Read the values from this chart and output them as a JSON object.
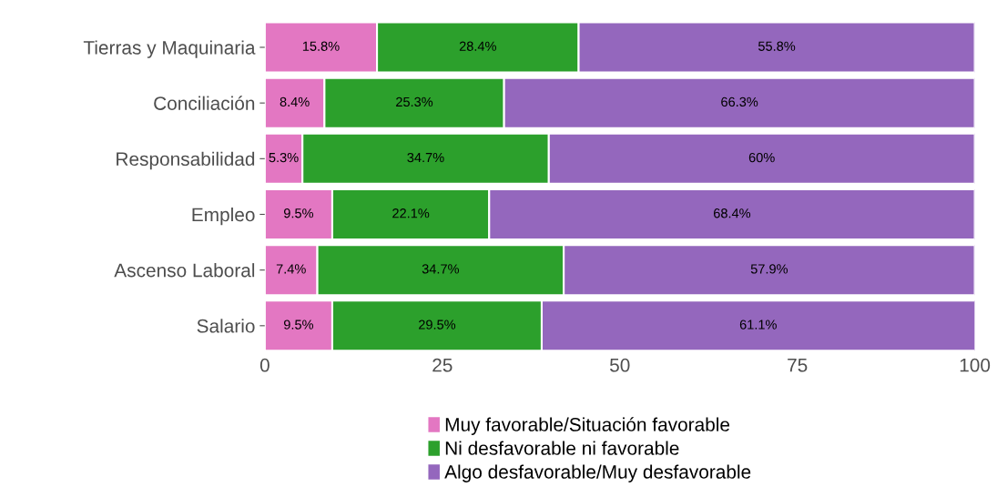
{
  "chart_data": {
    "type": "bar",
    "orientation": "horizontal",
    "stacked": true,
    "categories": [
      "Tierras y Maquinaria",
      "Conciliación",
      "Responsabilidad",
      "Empleo",
      "Ascenso Laboral",
      "Salario"
    ],
    "series": [
      {
        "name": "Muy favorable/Situación favorable",
        "color": "#e377c2",
        "values": [
          15.8,
          8.4,
          5.3,
          9.5,
          7.4,
          9.5
        ],
        "value_labels": [
          "15.8%",
          "8.4%",
          "5.3%",
          "9.5%",
          "7.4%",
          "9.5%"
        ]
      },
      {
        "name": "Ni desfavorable ni favorable",
        "color": "#2ca02c",
        "values": [
          28.4,
          25.3,
          34.7,
          22.1,
          34.7,
          29.5
        ],
        "value_labels": [
          "28.4%",
          "25.3%",
          "34.7%",
          "22.1%",
          "34.7%",
          "29.5%"
        ]
      },
      {
        "name": "Algo desfavorable/Muy desfavorable",
        "color": "#9467bd",
        "values": [
          55.8,
          66.3,
          60,
          68.4,
          57.9,
          61.1
        ],
        "value_labels": [
          "55.8%",
          "66.3%",
          "60%",
          "68.4%",
          "57.9%",
          "61.1%"
        ]
      }
    ],
    "xlim": [
      0,
      100
    ],
    "xticks": [
      0,
      25,
      50,
      75,
      100
    ],
    "grid": false,
    "legend": "bottom"
  }
}
